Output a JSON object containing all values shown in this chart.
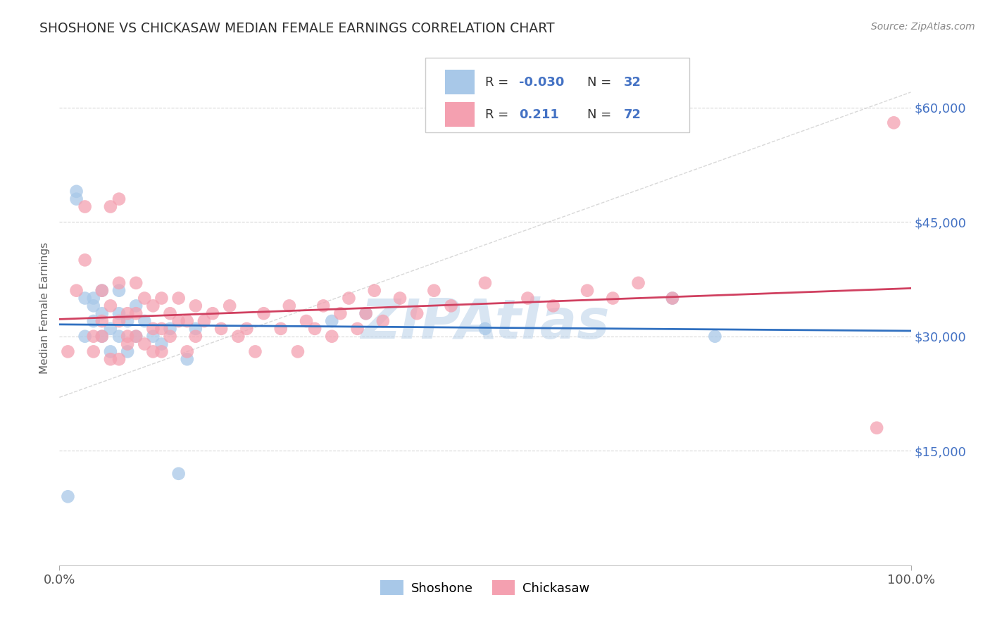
{
  "title": "SHOSHONE VS CHICKASAW MEDIAN FEMALE EARNINGS CORRELATION CHART",
  "source": "Source: ZipAtlas.com",
  "ylabel": "Median Female Earnings",
  "xlim": [
    0.0,
    1.0
  ],
  "ylim": [
    0,
    67500
  ],
  "ytick_vals": [
    0,
    15000,
    30000,
    45000,
    60000
  ],
  "shoshone_color": "#a8c8e8",
  "chickasaw_color": "#f4a0b0",
  "shoshone_line_color": "#3070c0",
  "chickasaw_line_color": "#d04060",
  "ref_line_color": "#c8c8c8",
  "watermark": "ZIPAtlas",
  "watermark_color": "#b8d0e8",
  "background_color": "#ffffff",
  "grid_color": "#d8d8d8",
  "title_color": "#303030",
  "axis_label_color": "#606060",
  "right_tick_color": "#4472c4",
  "legend_text_color": "#4472c4",
  "shoshone_x": [
    0.01,
    0.02,
    0.02,
    0.03,
    0.03,
    0.04,
    0.04,
    0.04,
    0.05,
    0.05,
    0.05,
    0.06,
    0.06,
    0.07,
    0.07,
    0.07,
    0.08,
    0.08,
    0.09,
    0.09,
    0.1,
    0.11,
    0.12,
    0.13,
    0.14,
    0.15,
    0.16,
    0.32,
    0.36,
    0.5,
    0.72,
    0.77
  ],
  "shoshone_y": [
    9000,
    48000,
    49000,
    35000,
    30000,
    35000,
    34000,
    32000,
    30000,
    33000,
    36000,
    31000,
    28000,
    30000,
    33000,
    36000,
    28000,
    32000,
    30000,
    34000,
    32000,
    30000,
    29000,
    31000,
    12000,
    27000,
    31000,
    32000,
    33000,
    31000,
    35000,
    30000
  ],
  "chickasaw_x": [
    0.01,
    0.02,
    0.03,
    0.03,
    0.04,
    0.04,
    0.05,
    0.05,
    0.05,
    0.06,
    0.06,
    0.06,
    0.07,
    0.07,
    0.07,
    0.07,
    0.08,
    0.08,
    0.08,
    0.09,
    0.09,
    0.09,
    0.1,
    0.1,
    0.11,
    0.11,
    0.11,
    0.12,
    0.12,
    0.12,
    0.13,
    0.13,
    0.14,
    0.14,
    0.15,
    0.15,
    0.16,
    0.16,
    0.17,
    0.18,
    0.19,
    0.2,
    0.21,
    0.22,
    0.23,
    0.24,
    0.26,
    0.27,
    0.28,
    0.29,
    0.3,
    0.31,
    0.32,
    0.33,
    0.34,
    0.35,
    0.36,
    0.37,
    0.38,
    0.4,
    0.42,
    0.44,
    0.46,
    0.5,
    0.55,
    0.58,
    0.62,
    0.65,
    0.68,
    0.72,
    0.96,
    0.98
  ],
  "chickasaw_y": [
    28000,
    36000,
    40000,
    47000,
    30000,
    28000,
    36000,
    32000,
    30000,
    27000,
    34000,
    47000,
    27000,
    37000,
    48000,
    32000,
    30000,
    33000,
    29000,
    30000,
    37000,
    33000,
    29000,
    35000,
    28000,
    31000,
    34000,
    31000,
    28000,
    35000,
    30000,
    33000,
    32000,
    35000,
    28000,
    32000,
    30000,
    34000,
    32000,
    33000,
    31000,
    34000,
    30000,
    31000,
    28000,
    33000,
    31000,
    34000,
    28000,
    32000,
    31000,
    34000,
    30000,
    33000,
    35000,
    31000,
    33000,
    36000,
    32000,
    35000,
    33000,
    36000,
    34000,
    37000,
    35000,
    34000,
    36000,
    35000,
    37000,
    35000,
    18000,
    58000
  ]
}
